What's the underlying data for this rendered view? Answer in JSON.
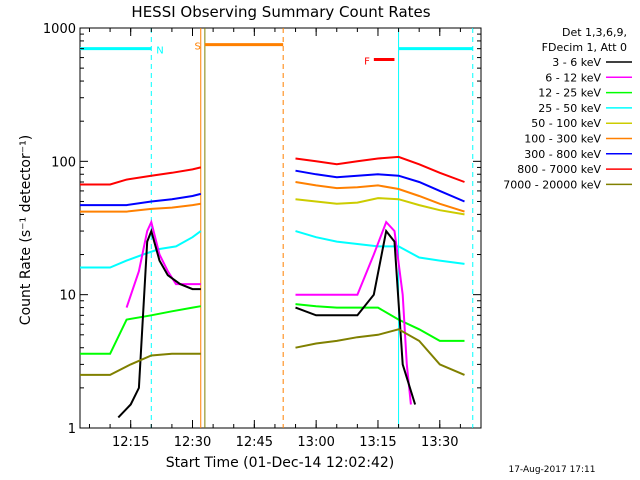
{
  "chart_data": {
    "type": "line",
    "title": "HESSI Observing Summary Count Rates",
    "xlabel": "Start Time (01-Dec-14 12:02:42)",
    "ylabel": "Count Rate (s⁻¹ detector⁻¹)",
    "yscale": "log",
    "ylim": [
      1,
      1000
    ],
    "xlim": [
      "12:02:42",
      "13:40:00"
    ],
    "y_ticks": [
      "1",
      "10",
      "100",
      "1000"
    ],
    "x_ticks": [
      "12:15",
      "12:30",
      "12:45",
      "13:00",
      "13:15",
      "13:30"
    ],
    "grid": false,
    "legend": {
      "placement": "right",
      "header": [
        "Det 1,3,6,9,",
        "FDecim 1, Att 0"
      ],
      "entries": [
        {
          "name": "3 - 6 keV",
          "color": "#000000"
        },
        {
          "name": "6 - 12 keV",
          "color": "#ff00ff"
        },
        {
          "name": "12 - 25 keV",
          "color": "#00ff00"
        },
        {
          "name": "25 - 50 keV",
          "color": "#00ffff"
        },
        {
          "name": "50 - 100 keV",
          "color": "#cccc00"
        },
        {
          "name": "100 - 300 keV",
          "color": "#ff8000"
        },
        {
          "name": "300 - 800 keV",
          "color": "#0000ff"
        },
        {
          "name": "800 - 7000 keV",
          "color": "#ff0000"
        },
        {
          "name": "7000 - 20000 keV",
          "color": "#808000"
        }
      ]
    },
    "series": [
      {
        "name": "800 - 7000 keV",
        "color": "#ff0000",
        "points": [
          [
            "12:02:42",
            67
          ],
          [
            "12:10",
            67
          ],
          [
            "12:14",
            73
          ],
          [
            "12:20",
            78
          ],
          [
            "12:25",
            82
          ],
          [
            "12:30",
            87
          ],
          [
            "12:32",
            90
          ],
          [
            "12:55",
            105
          ],
          [
            "13:00",
            100
          ],
          [
            "13:05",
            95
          ],
          [
            "13:10",
            100
          ],
          [
            "13:15",
            105
          ],
          [
            "13:20",
            108
          ],
          [
            "13:25",
            95
          ],
          [
            "13:30",
            82
          ],
          [
            "13:36",
            70
          ]
        ]
      },
      {
        "name": "300 - 800 keV",
        "color": "#0000ff",
        "points": [
          [
            "12:02:42",
            47
          ],
          [
            "12:14",
            47
          ],
          [
            "12:20",
            50
          ],
          [
            "12:25",
            52
          ],
          [
            "12:30",
            55
          ],
          [
            "12:32",
            57
          ],
          [
            "12:55",
            85
          ],
          [
            "13:00",
            80
          ],
          [
            "13:05",
            76
          ],
          [
            "13:10",
            78
          ],
          [
            "13:15",
            80
          ],
          [
            "13:20",
            78
          ],
          [
            "13:25",
            70
          ],
          [
            "13:30",
            60
          ],
          [
            "13:36",
            50
          ]
        ]
      },
      {
        "name": "100 - 300 keV",
        "color": "#ff8000",
        "points": [
          [
            "12:02:42",
            42
          ],
          [
            "12:14",
            42
          ],
          [
            "12:20",
            44
          ],
          [
            "12:25",
            45
          ],
          [
            "12:30",
            47
          ],
          [
            "12:32",
            48
          ],
          [
            "12:55",
            70
          ],
          [
            "13:00",
            66
          ],
          [
            "13:05",
            63
          ],
          [
            "13:10",
            64
          ],
          [
            "13:15",
            66
          ],
          [
            "13:20",
            62
          ],
          [
            "13:25",
            55
          ],
          [
            "13:30",
            48
          ],
          [
            "13:36",
            42
          ]
        ]
      },
      {
        "name": "50 - 100 keV",
        "color": "#cccc00",
        "points": [
          [
            "12:55",
            52
          ],
          [
            "13:00",
            50
          ],
          [
            "13:05",
            48
          ],
          [
            "13:10",
            49
          ],
          [
            "13:15",
            53
          ],
          [
            "13:20",
            52
          ],
          [
            "13:25",
            47
          ],
          [
            "13:30",
            43
          ],
          [
            "13:36",
            40
          ]
        ]
      },
      {
        "name": "25 - 50 keV",
        "color": "#00ffff",
        "points": [
          [
            "12:02:42",
            16
          ],
          [
            "12:10",
            16
          ],
          [
            "12:14",
            18
          ],
          [
            "12:18",
            20
          ],
          [
            "12:22",
            22
          ],
          [
            "12:26",
            23
          ],
          [
            "12:30",
            27
          ],
          [
            "12:32",
            30
          ],
          [
            "12:55",
            30
          ],
          [
            "13:00",
            27
          ],
          [
            "13:05",
            25
          ],
          [
            "13:10",
            24
          ],
          [
            "13:15",
            23
          ],
          [
            "13:20",
            23
          ],
          [
            "13:25",
            19
          ],
          [
            "13:30",
            18
          ],
          [
            "13:36",
            17
          ]
        ]
      },
      {
        "name": "12 - 25 keV",
        "color": "#00ff00",
        "points": [
          [
            "12:02:42",
            3.6
          ],
          [
            "12:10",
            3.6
          ],
          [
            "12:14",
            6.5
          ],
          [
            "12:20",
            7.0
          ],
          [
            "12:25",
            7.5
          ],
          [
            "12:30",
            8.0
          ],
          [
            "12:32",
            8.2
          ],
          [
            "12:55",
            8.5
          ],
          [
            "13:00",
            8.2
          ],
          [
            "13:05",
            8.0
          ],
          [
            "13:10",
            8.0
          ],
          [
            "13:15",
            8.0
          ],
          [
            "13:20",
            6.5
          ],
          [
            "13:25",
            5.5
          ],
          [
            "13:30",
            4.5
          ],
          [
            "13:36",
            4.5
          ]
        ]
      },
      {
        "name": "6 - 12 keV",
        "color": "#ff00ff",
        "points": [
          [
            "12:14",
            8
          ],
          [
            "12:17",
            15
          ],
          [
            "12:19",
            30
          ],
          [
            "12:20",
            35
          ],
          [
            "12:22",
            20
          ],
          [
            "12:24",
            15
          ],
          [
            "12:26",
            12
          ],
          [
            "12:30",
            12
          ],
          [
            "12:32",
            12
          ],
          [
            "12:55",
            10
          ],
          [
            "13:00",
            10
          ],
          [
            "13:05",
            10
          ],
          [
            "13:10",
            10
          ],
          [
            "13:14",
            20
          ],
          [
            "13:17",
            35
          ],
          [
            "13:19",
            30
          ],
          [
            "13:21",
            10
          ],
          [
            "13:22",
            3
          ],
          [
            "13:23",
            1.5
          ]
        ]
      },
      {
        "name": "3 - 6 keV",
        "color": "#000000",
        "points": [
          [
            "12:12",
            1.2
          ],
          [
            "12:15",
            1.5
          ],
          [
            "12:17",
            2
          ],
          [
            "12:19",
            25
          ],
          [
            "12:20",
            30
          ],
          [
            "12:22",
            18
          ],
          [
            "12:24",
            14
          ],
          [
            "12:27",
            12
          ],
          [
            "12:30",
            11
          ],
          [
            "12:32",
            11
          ],
          [
            "12:55",
            8
          ],
          [
            "13:00",
            7
          ],
          [
            "13:05",
            7
          ],
          [
            "13:10",
            7
          ],
          [
            "13:14",
            10
          ],
          [
            "13:17",
            30
          ],
          [
            "13:19",
            25
          ],
          [
            "13:21",
            3
          ],
          [
            "13:24",
            1.5
          ]
        ]
      },
      {
        "name": "7000 - 20000 keV",
        "color": "#808000",
        "points": [
          [
            "12:02:42",
            2.5
          ],
          [
            "12:10",
            2.5
          ],
          [
            "12:15",
            3.0
          ],
          [
            "12:20",
            3.5
          ],
          [
            "12:25",
            3.6
          ],
          [
            "12:30",
            3.6
          ],
          [
            "12:32",
            3.6
          ],
          [
            "12:55",
            4.0
          ],
          [
            "13:00",
            4.3
          ],
          [
            "13:05",
            4.5
          ],
          [
            "13:10",
            4.8
          ],
          [
            "13:15",
            5.0
          ],
          [
            "13:20",
            5.5
          ],
          [
            "13:25",
            4.5
          ],
          [
            "13:30",
            3.0
          ],
          [
            "13:36",
            2.5
          ]
        ]
      }
    ],
    "annotations": [
      {
        "label": "N",
        "color": "#00ffff",
        "y": 700,
        "x_start": "12:02:42",
        "x_end": "12:20",
        "dashed_end": "12:20"
      },
      {
        "label": "S",
        "color": "#ff8000",
        "y": 750,
        "x_start": "12:33",
        "x_end": "12:52",
        "dashed_end": "12:52"
      },
      {
        "label": "F",
        "color": "#ff0000",
        "y": 580,
        "x_start": "13:14",
        "x_end": "13:19"
      },
      {
        "label": "",
        "color": "#00ffff",
        "y": 700,
        "x_start": "13:20",
        "x_end": "13:38",
        "dashed_end": "13:38"
      }
    ],
    "vertical_markers": [
      {
        "time": "12:20",
        "color": "#00ffff",
        "style": "dashed"
      },
      {
        "time": "12:32",
        "color": "#ff8000",
        "style": "solid"
      },
      {
        "time": "12:33",
        "color": "#808000",
        "style": "solid"
      },
      {
        "time": "12:52",
        "color": "#ff8000",
        "style": "dashed"
      },
      {
        "time": "13:20",
        "color": "#00ffff",
        "style": "solid"
      },
      {
        "time": "13:38",
        "color": "#00ffff",
        "style": "dashed"
      }
    ]
  },
  "footer_timestamp": "17-Aug-2017 17:11"
}
